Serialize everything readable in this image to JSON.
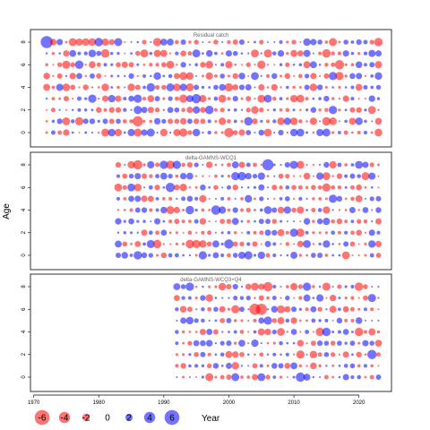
{
  "chart_data": {
    "type": "scatter",
    "xlabel": "Year",
    "ylabel": "Age",
    "xlim": [
      1969.5,
      2025
    ],
    "x_ticks": [
      1970,
      1980,
      1990,
      2000,
      2010,
      2020
    ],
    "y_ticks": [
      0,
      2,
      4,
      6,
      8
    ],
    "ylim": [
      -1,
      9
    ],
    "ages": [
      0,
      1,
      2,
      3,
      4,
      5,
      6,
      7,
      8
    ],
    "colors": {
      "negative": "#ff0000",
      "positive": "#0000ff",
      "alpha": 0.55
    },
    "legend": {
      "values": [
        -6,
        -4,
        -2,
        0,
        2,
        4,
        6
      ],
      "labels": [
        "-6",
        "-4",
        "-2",
        "0",
        "2",
        "4",
        "6"
      ],
      "placement": "bottom",
      "title": "Year"
    },
    "panels": [
      {
        "name": "Residual catch",
        "years": [
          1972,
          2023
        ],
        "notable": [
          {
            "year": 1972,
            "age": 8,
            "value": 5.5
          },
          {
            "year": 1986,
            "age": 1,
            "value": -4.5
          },
          {
            "year": 2000,
            "age": 0,
            "value": -4
          },
          {
            "year": 2017,
            "age": 6,
            "value": -4
          },
          {
            "year": 1995,
            "age": 3,
            "value": 4
          }
        ]
      },
      {
        "name": "delta-GAMNS-WCQ1",
        "years": [
          1983,
          2023
        ],
        "notable": [
          {
            "year": 2006,
            "age": 8,
            "value": 5
          },
          {
            "year": 1991,
            "age": 6,
            "value": 4
          },
          {
            "year": 1998,
            "age": 4,
            "value": 4
          },
          {
            "year": 1986,
            "age": 8,
            "value": -4
          },
          {
            "year": 2000,
            "age": 1,
            "value": 4
          }
        ]
      },
      {
        "name": "delta-GAMNS-WCQ3+Q4",
        "years": [
          1992,
          2023
        ],
        "notable": [
          {
            "year": 2005,
            "age": 6,
            "value": -5
          },
          {
            "year": 2004,
            "age": 6,
            "value": -5
          },
          {
            "year": 2006,
            "age": 8,
            "value": -4
          },
          {
            "year": 2011,
            "age": 0,
            "value": 4
          },
          {
            "year": 2022,
            "age": 2,
            "value": 4
          }
        ]
      }
    ]
  }
}
